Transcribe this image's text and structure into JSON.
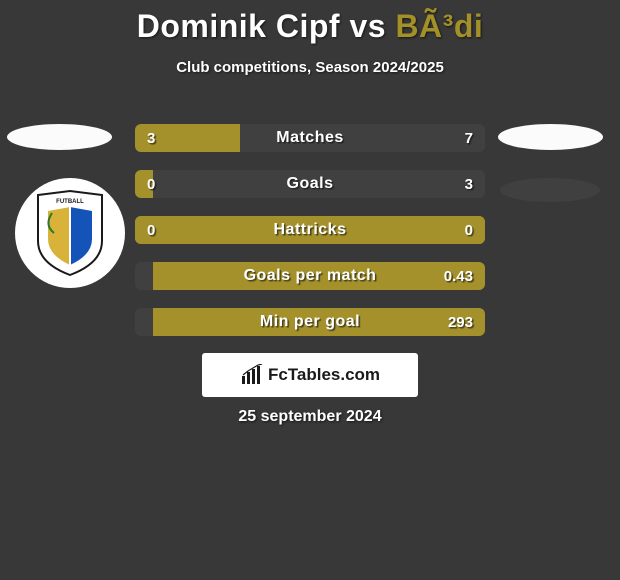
{
  "header": {
    "player1": "Dominik Cipf",
    "vs": " vs ",
    "player2": "BÃ³di",
    "subtitle": "Club competitions, Season 2024/2025"
  },
  "colors": {
    "left": "#a4912b",
    "right": "#404040",
    "track_default": "#a4912b",
    "track_neutral": "#404040",
    "background": "#383838",
    "text": "#ffffff",
    "logo_bg": "#ffffff",
    "logo_text": "#1a1a1a"
  },
  "bars": [
    {
      "label": "Matches",
      "left_val": "3",
      "right_val": "7",
      "left_pct": 30,
      "right_pct": 70
    },
    {
      "label": "Goals",
      "left_val": "0",
      "right_val": "3",
      "left_pct": 5,
      "right_pct": 95
    },
    {
      "label": "Hattricks",
      "left_val": "0",
      "right_val": "0",
      "left_pct": 100,
      "right_pct": 0,
      "force_left_color": true
    },
    {
      "label": "Goals per match",
      "left_val": "",
      "right_val": "0.43",
      "left_pct": 5,
      "right_pct": 95,
      "swap_colors": true
    },
    {
      "label": "Min per goal",
      "left_val": "",
      "right_val": "293",
      "left_pct": 5,
      "right_pct": 95,
      "swap_colors": true
    }
  ],
  "footer": {
    "logo_text": "FcTables.com",
    "date": "25 september 2024"
  },
  "crest": {
    "primary": "#1454b8",
    "accent": "#d9b23a",
    "outline": "#1a1a1a"
  }
}
